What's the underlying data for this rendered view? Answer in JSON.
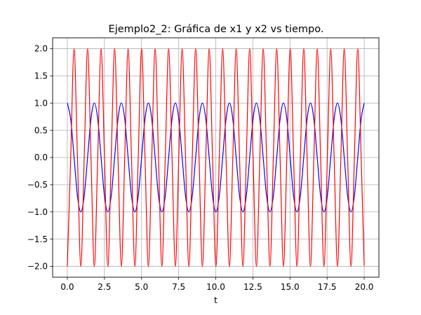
{
  "chart_data": {
    "type": "line",
    "title": "Ejemplo2_2: Gráfica de x1 y x2 vs tiempo.",
    "xlabel": "t",
    "ylabel": "",
    "xlim": [
      -0.99,
      20.99
    ],
    "ylim": [
      -2.2,
      2.2
    ],
    "grid": true,
    "xticks": [
      0.0,
      2.5,
      5.0,
      7.5,
      10.0,
      12.5,
      15.0,
      17.5,
      20.0
    ],
    "xtick_labels": [
      "0.0",
      "2.5",
      "5.0",
      "7.5",
      "10.0",
      "12.5",
      "15.0",
      "17.5",
      "20.0"
    ],
    "yticks": [
      2.0,
      1.5,
      1.0,
      0.5,
      0.0,
      -0.5,
      -1.0,
      -1.5,
      -2.0
    ],
    "ytick_labels": [
      "2.0",
      "1.5",
      "1.0",
      "0.5",
      "0.0",
      "−0.5",
      "−1.0",
      "−1.5",
      "−2.0"
    ],
    "series": [
      {
        "color": "#0000ff",
        "x": [
          0.0,
          0.228,
          0.455,
          0.683,
          0.91,
          1.138,
          1.365,
          1.593,
          1.82,
          2.048,
          2.275,
          2.503,
          2.73,
          2.958,
          3.185,
          3.413,
          3.64,
          3.868,
          4.095,
          4.323,
          4.55,
          4.778,
          5.005,
          5.233,
          5.46,
          5.688,
          5.915,
          6.143,
          6.37,
          6.598,
          6.825,
          7.053,
          7.28,
          7.508,
          7.735,
          7.963,
          8.19,
          8.418,
          8.645,
          8.873,
          9.1,
          9.328,
          9.555,
          9.783,
          10.01,
          10.238,
          10.465,
          10.693,
          10.92,
          11.148,
          11.375,
          11.603,
          11.83,
          12.058,
          12.285,
          12.513,
          12.74,
          12.968,
          13.195,
          13.423,
          13.65,
          13.878,
          14.105,
          14.333,
          14.56,
          14.788,
          15.015,
          15.243,
          15.47,
          15.698,
          15.925,
          16.153,
          16.38,
          16.608,
          16.835,
          17.063,
          17.29,
          17.518,
          17.745,
          17.973,
          18.2,
          18.428,
          18.655,
          18.883,
          19.11,
          19.338,
          19.565,
          19.793,
          20.0
        ],
        "y": [
          1.0,
          0.707,
          0.0,
          -0.707,
          -1.0,
          -0.707,
          0.0,
          0.707,
          1.0,
          0.707,
          0.0,
          -0.707,
          -1.0,
          -0.707,
          0.0,
          0.707,
          1.0,
          0.707,
          0.0,
          -0.707,
          -1.0,
          -0.707,
          0.0,
          0.707,
          1.0,
          0.707,
          0.0,
          -0.707,
          -1.0,
          -0.707,
          0.0,
          0.707,
          1.0,
          0.707,
          0.0,
          -0.707,
          -1.0,
          -0.707,
          0.0,
          0.707,
          1.0,
          0.707,
          0.0,
          -0.707,
          -1.0,
          -0.707,
          0.0,
          0.707,
          1.0,
          0.707,
          0.0,
          -0.707,
          -1.0,
          -0.707,
          0.0,
          0.707,
          1.0,
          0.707,
          0.0,
          -0.707,
          -1.0,
          -0.707,
          0.0,
          0.707,
          1.0,
          0.707,
          0.0,
          -0.707,
          -1.0,
          -0.707,
          0.0,
          0.707,
          1.0,
          0.707,
          0.0,
          -0.707,
          -1.0,
          -0.707,
          0.0,
          0.707,
          1.0,
          0.707,
          0.0,
          -0.707,
          -1.0,
          -0.707,
          0.0,
          0.707,
          1.0
        ]
      },
      {
        "color": "#ff0000",
        "x": [
          0.0,
          0.228,
          0.455,
          0.683,
          0.91,
          1.138,
          1.365,
          1.593,
          1.82,
          2.048,
          2.275,
          2.503,
          2.73,
          2.958,
          3.185,
          3.413,
          3.64,
          3.868,
          4.095,
          4.323,
          4.55,
          4.778,
          5.005,
          5.233,
          5.46,
          5.688,
          5.915,
          6.143,
          6.37,
          6.598,
          6.825,
          7.053,
          7.28,
          7.508,
          7.735,
          7.963,
          8.19,
          8.418,
          8.645,
          8.873,
          9.1,
          9.328,
          9.555,
          9.783,
          10.01,
          10.238,
          10.465,
          10.693,
          10.92,
          11.148,
          11.375,
          11.603,
          11.83,
          12.058,
          12.285,
          12.513,
          12.74,
          12.968,
          13.195,
          13.423,
          13.65,
          13.878,
          14.105,
          14.333,
          14.56,
          14.788,
          15.015,
          15.243,
          15.47,
          15.698,
          15.925,
          16.153,
          16.38,
          16.608,
          16.835,
          17.063,
          17.29,
          17.518,
          17.745,
          17.973,
          18.2,
          18.428,
          18.655,
          18.883,
          19.11,
          19.338,
          19.565,
          19.793,
          20.0
        ],
        "y": [
          -2.0,
          0.0,
          2.0,
          0.0,
          -2.0,
          0.0,
          2.0,
          0.0,
          -2.0,
          0.0,
          2.0,
          0.0,
          -2.0,
          0.0,
          2.0,
          0.0,
          -2.0,
          0.0,
          2.0,
          0.0,
          -2.0,
          0.0,
          2.0,
          0.0,
          -2.0,
          0.0,
          2.0,
          0.0,
          -2.0,
          0.0,
          2.0,
          0.0,
          -2.0,
          0.0,
          2.0,
          0.0,
          -2.0,
          0.0,
          2.0,
          0.0,
          -2.0,
          0.0,
          2.0,
          0.0,
          -2.0,
          0.0,
          2.0,
          0.0,
          -2.0,
          0.0,
          2.0,
          0.0,
          -2.0,
          0.0,
          2.0,
          0.0,
          -2.0,
          0.0,
          2.0,
          0.0,
          -2.0,
          0.0,
          2.0,
          0.0,
          -2.0,
          0.0,
          2.0,
          0.0,
          -2.0,
          0.0,
          2.0,
          0.0,
          -2.0,
          0.0,
          2.0,
          0.0,
          -2.0,
          0.0,
          2.0,
          0.0,
          -2.0,
          0.0,
          2.0,
          0.0,
          -2.0,
          0.0,
          2.0,
          0.0,
          -1.99
        ]
      }
    ]
  }
}
